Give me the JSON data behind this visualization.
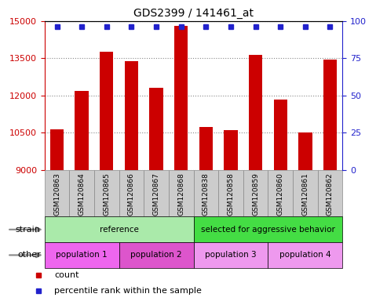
{
  "title": "GDS2399 / 141461_at",
  "samples": [
    "GSM120863",
    "GSM120864",
    "GSM120865",
    "GSM120866",
    "GSM120867",
    "GSM120868",
    "GSM120838",
    "GSM120858",
    "GSM120859",
    "GSM120860",
    "GSM120861",
    "GSM120862"
  ],
  "counts": [
    10650,
    12200,
    13750,
    13400,
    12300,
    14800,
    10750,
    10600,
    13650,
    11850,
    10500,
    13450
  ],
  "percentile_ranks": [
    97,
    97,
    97,
    97,
    97,
    99,
    95,
    95,
    97,
    97,
    95,
    97
  ],
  "ylim": [
    9000,
    15000
  ],
  "yticks_left": [
    9000,
    10500,
    12000,
    13500,
    15000
  ],
  "yticks_right": [
    0,
    25,
    50,
    75,
    100
  ],
  "bar_color": "#cc0000",
  "dot_color": "#2222cc",
  "bar_width": 0.55,
  "strain_labels": [
    {
      "text": "reference",
      "start": 0,
      "end": 6,
      "color": "#aaeaaa"
    },
    {
      "text": "selected for aggressive behavior",
      "start": 6,
      "end": 12,
      "color": "#44dd44"
    }
  ],
  "other_labels": [
    {
      "text": "population 1",
      "start": 0,
      "end": 3,
      "color": "#ee66ee"
    },
    {
      "text": "population 2",
      "start": 3,
      "end": 6,
      "color": "#dd55cc"
    },
    {
      "text": "population 3",
      "start": 6,
      "end": 9,
      "color": "#ee99ee"
    },
    {
      "text": "population 4",
      "start": 9,
      "end": 12,
      "color": "#ee99ee"
    }
  ],
  "left_tick_color": "#cc0000",
  "right_tick_color": "#2222cc",
  "grid_linestyle": "dotted",
  "grid_color": "#888888",
  "xtick_box_color": "#cccccc",
  "xtick_box_edgecolor": "#888888",
  "label_arrow_color": "#888888",
  "legend_items": [
    {
      "color": "#cc0000",
      "label": "count"
    },
    {
      "color": "#2222cc",
      "label": "percentile rank within the sample"
    }
  ]
}
